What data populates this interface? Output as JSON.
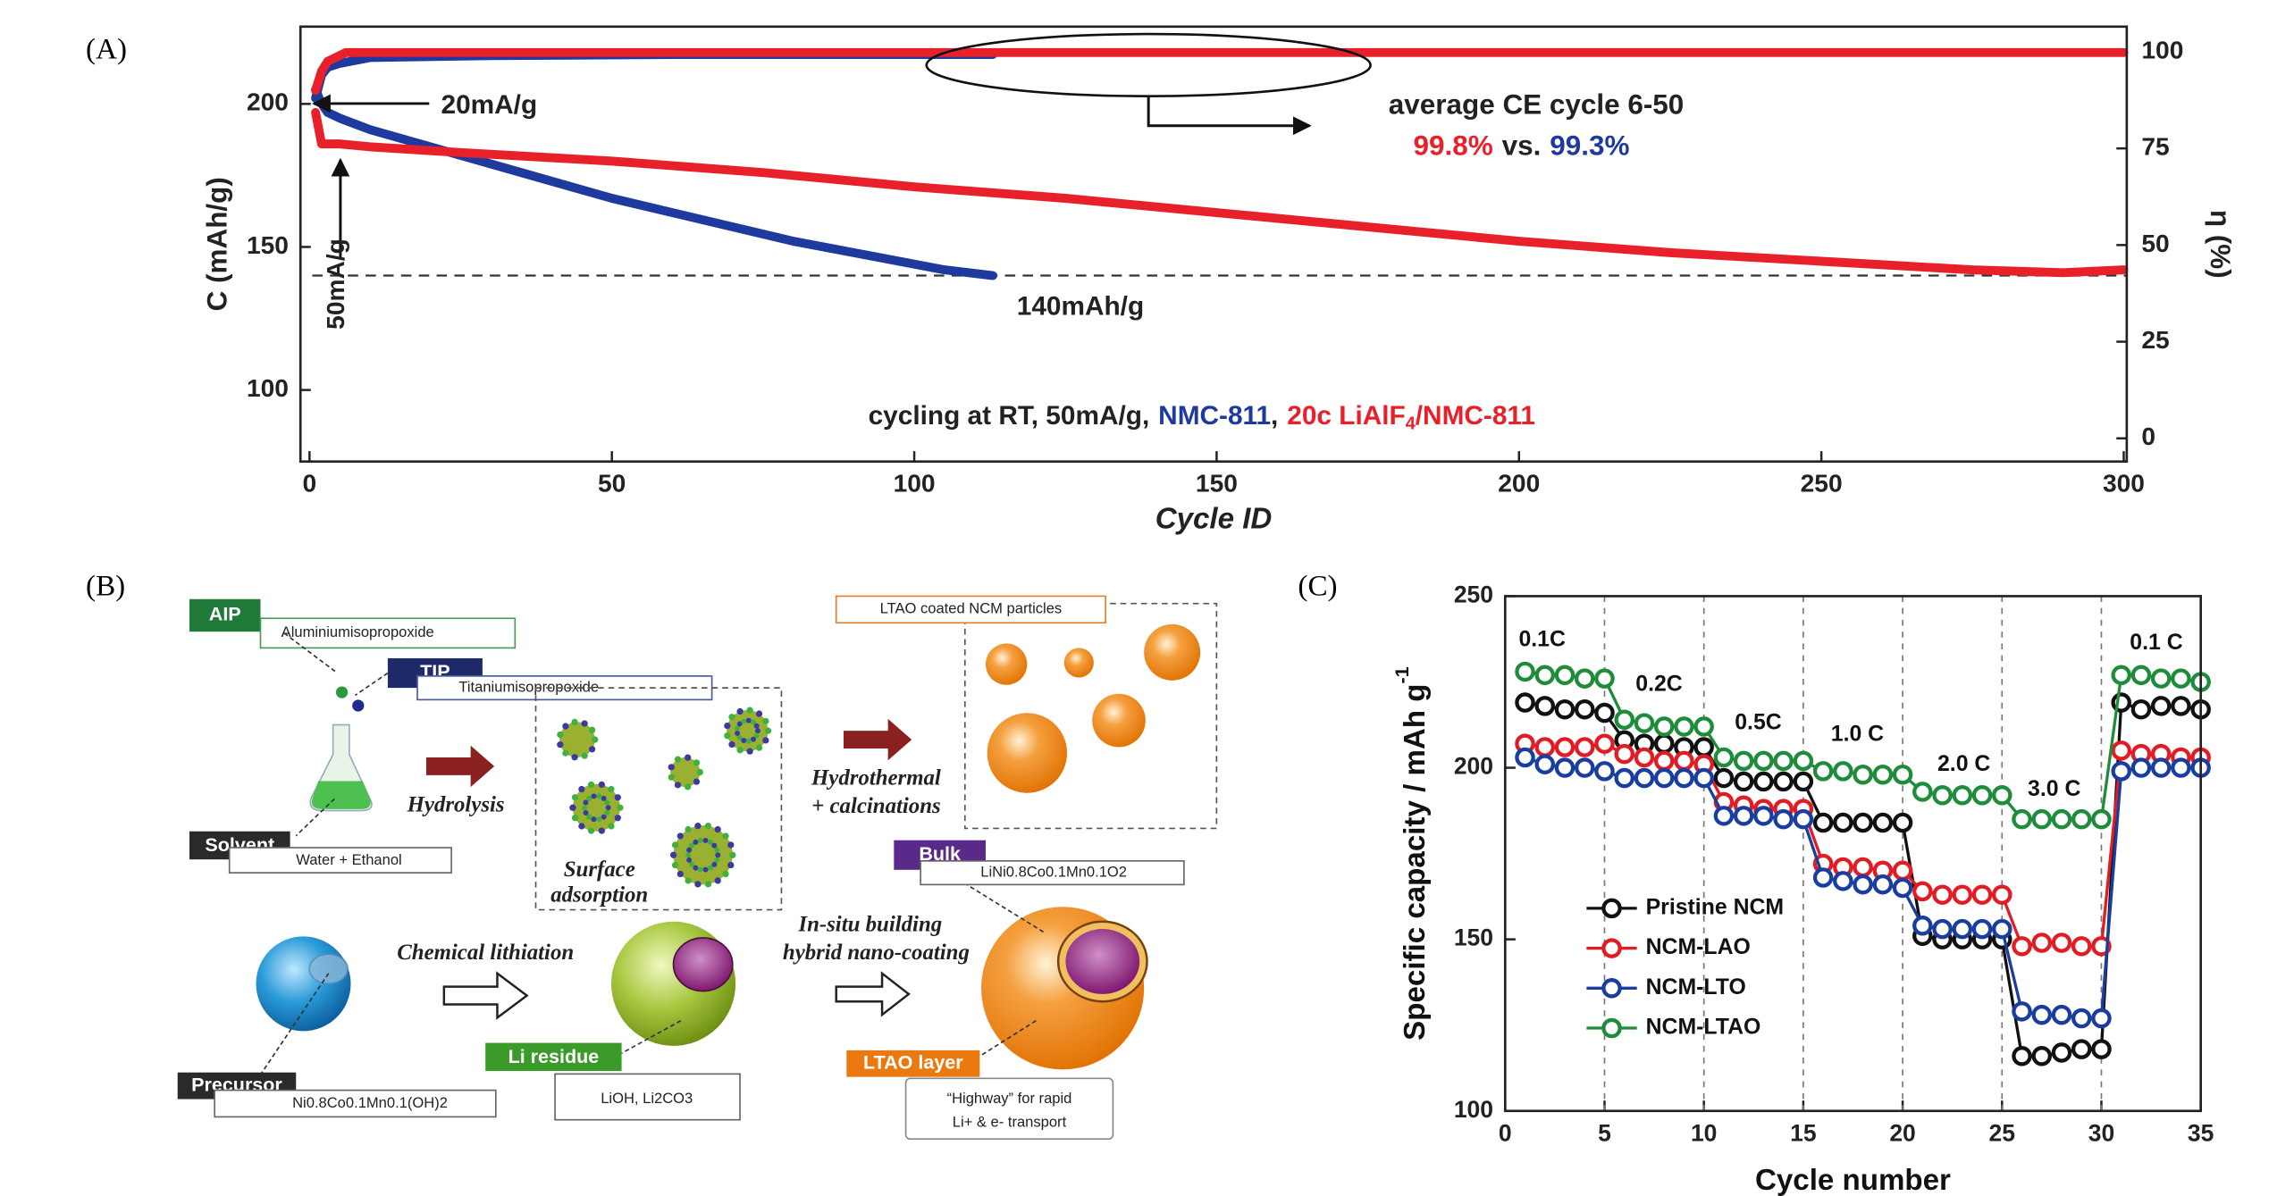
{
  "chart_data": [
    {
      "type": "line",
      "panel_label": "(A)",
      "xlabel": "Cycle ID",
      "ylabel": "C (mAh/g)",
      "y2label": "η (%)",
      "xlim": [
        -1.5,
        300.5
      ],
      "xticks": [
        0,
        50,
        100,
        150,
        200,
        250,
        300
      ],
      "ylim": [
        75,
        227
      ],
      "yticks": [
        100,
        150,
        200
      ],
      "y2lim": [
        -6,
        106.5
      ],
      "y2ticks": [
        0,
        25,
        50,
        75,
        100
      ],
      "markers": false,
      "hlines": [
        140
      ],
      "series": [
        {
          "color": "#1f3a9e",
          "x": [
            1,
            2,
            3,
            5,
            10,
            20,
            30,
            40,
            50,
            60,
            70,
            80,
            90,
            100,
            105,
            113
          ],
          "values": [
            205,
            200,
            197,
            195,
            191,
            185,
            179,
            173,
            167,
            162,
            157,
            152,
            148,
            144,
            142,
            140
          ]
        },
        {
          "color": "#e8202a",
          "x": [
            1,
            2,
            5,
            10,
            25,
            50,
            75,
            100,
            125,
            150,
            175,
            200,
            225,
            250,
            275,
            290,
            300
          ],
          "values": [
            197,
            186,
            186,
            185,
            183,
            180,
            176,
            171,
            167,
            162,
            157,
            152,
            148,
            145,
            142,
            141,
            142
          ]
        },
        {
          "color": "#1f3a9e",
          "axis": "y2",
          "x": [
            1,
            2,
            3,
            5,
            10,
            30,
            60,
            90,
            113
          ],
          "values": [
            88,
            94,
            96,
            97,
            98.5,
            99,
            99.3,
            99.3,
            99.3
          ]
        },
        {
          "color": "#e8202a",
          "axis": "y2",
          "x": [
            1,
            2,
            3,
            6,
            50,
            100,
            150,
            200,
            250,
            300
          ],
          "values": [
            90,
            95,
            97.5,
            99.8,
            99.8,
            99.8,
            99.8,
            99.8,
            99.8,
            99.8
          ]
        }
      ],
      "annotations": {
        "rate1": "20mA/g",
        "rate2": "50mA/g",
        "cutoff": "140mAh/g",
        "ce_title": "average CE cycle 6-50",
        "ce_compare": [
          {
            "text": "99.8%",
            "color": "#e8202a"
          },
          {
            "text": "vs.",
            "color": "#222222"
          },
          {
            "text": "99.3%",
            "color": "#1f3a9e"
          }
        ],
        "caption": [
          {
            "text": "cycling at RT, 50mA/g,",
            "color": "#222222"
          },
          {
            "text": "NMC-811",
            "color": "#1f3a9e"
          },
          {
            "text": ",",
            "color": "#222222"
          },
          {
            "text": "20c LiAlF",
            "color": "#e8202a"
          },
          {
            "text": "4",
            "color": "#e8202a",
            "sub": true
          },
          {
            "text": "/NMC-811",
            "color": "#e8202a"
          }
        ]
      }
    },
    {
      "type": "line",
      "panel_label": "(C)",
      "xlabel": "Cycle number",
      "ylabel": "Specific capacity / mAh g",
      "ylabel_sup": "-1",
      "xlim": [
        0,
        35
      ],
      "xticks": [
        0,
        5,
        10,
        15,
        20,
        25,
        30,
        35
      ],
      "ylim": [
        100,
        250
      ],
      "yticks": [
        100,
        150,
        200,
        250
      ],
      "markers": true,
      "legend": "lower left",
      "vlines": [
        5,
        10,
        15,
        20,
        25,
        30
      ],
      "rate_labels": [
        "0.1C",
        "0.2C",
        "0.5C",
        "1.0 C",
        "2.0 C",
        "3.0 C",
        "0.1 C"
      ],
      "x": [
        1,
        2,
        3,
        4,
        5,
        6,
        7,
        8,
        9,
        10,
        11,
        12,
        13,
        14,
        15,
        16,
        17,
        18,
        19,
        20,
        21,
        22,
        23,
        24,
        25,
        26,
        27,
        28,
        29,
        30,
        31,
        32,
        33,
        34,
        35
      ],
      "series": [
        {
          "name": "Pristine NCM",
          "color": "#111111",
          "values": [
            219,
            218,
            217,
            217,
            216,
            208,
            207,
            207,
            206,
            206,
            197,
            196,
            196,
            196,
            196,
            184,
            184,
            184,
            184,
            184,
            151,
            150,
            150,
            150,
            150,
            116,
            116,
            117,
            118,
            118,
            219,
            217,
            218,
            218,
            217
          ]
        },
        {
          "name": "NCM-LAO",
          "color": "#e21c24",
          "values": [
            207,
            206,
            206,
            206,
            207,
            204,
            203,
            202,
            202,
            201,
            190,
            189,
            188,
            188,
            188,
            172,
            171,
            171,
            170,
            170,
            164,
            163,
            163,
            163,
            163,
            148,
            149,
            149,
            148,
            148,
            205,
            204,
            204,
            203,
            203
          ]
        },
        {
          "name": "NCM-LTO",
          "color": "#1a3ea0",
          "values": [
            203,
            201,
            200,
            200,
            199,
            197,
            197,
            197,
            197,
            197,
            186,
            186,
            186,
            185,
            185,
            168,
            167,
            166,
            166,
            165,
            154,
            153,
            153,
            153,
            153,
            129,
            128,
            128,
            127,
            127,
            199,
            200,
            200,
            200,
            200
          ]
        },
        {
          "name": "NCM-LTAO",
          "color": "#1e8c3a",
          "values": [
            228,
            227,
            227,
            226,
            226,
            214,
            213,
            212,
            212,
            212,
            203,
            202,
            202,
            202,
            202,
            199,
            199,
            198,
            198,
            198,
            193,
            192,
            192,
            192,
            192,
            185,
            185,
            185,
            185,
            185,
            227,
            227,
            226,
            226,
            225
          ]
        }
      ]
    }
  ],
  "diagram": {
    "panel_label": "(B)",
    "aip": "AIP",
    "aip_name": "Aluminiumisopropoxide",
    "tip": "TIP",
    "tip_name": "Titaniumisopropoxide",
    "solvent": "Solvent",
    "solvent_name": "Water + Ethanol",
    "hydrolysis": "Hydrolysis",
    "adsorption": [
      "Surface",
      "adsorption"
    ],
    "coated": "LTAO coated NCM particles",
    "hydrothermal": [
      "Hydrothermal",
      "+ calcinations"
    ],
    "bulk": "Bulk",
    "bulk_formula": "LiNi0.8Co0.1Mn0.1O2",
    "lithiation": "Chemical lithiation",
    "insitu": [
      "In-situ building",
      "hybrid nano-coating"
    ],
    "precursor": "Precursor",
    "precursor_formula": "Ni0.8Co0.1Mn0.1(OH)2",
    "residue": "Li residue",
    "residue_formula": "LiOH, Li2CO3",
    "layer": "LTAO layer",
    "layer_note": [
      "“Highway” for rapid",
      "Li+ & e- transport"
    ]
  }
}
